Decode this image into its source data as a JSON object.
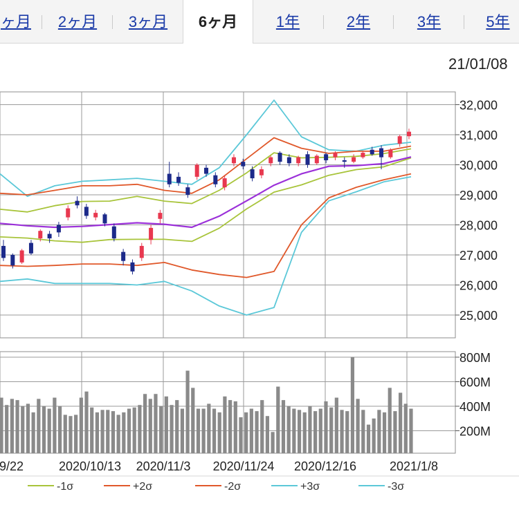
{
  "tabs": [
    {
      "label": "ヶ月",
      "active": false
    },
    {
      "label": "2ヶ月",
      "active": false
    },
    {
      "label": "3ヶ月",
      "active": false
    },
    {
      "label": "6ヶ月",
      "active": true
    },
    {
      "label": "1年",
      "active": false
    },
    {
      "label": "2年",
      "active": false
    },
    {
      "label": "3年",
      "active": false
    },
    {
      "label": "5年",
      "active": false
    }
  ],
  "date_label": "21/01/08",
  "colors": {
    "up": "#e8384f",
    "down": "#1c2a8a",
    "ma": "#9b30d9",
    "sigma1": "#a8c43a",
    "sigma2": "#e0582a",
    "sigma3": "#5bc8d8",
    "volume": "#8a8a8a",
    "grid": "#9a9a9a"
  },
  "chart_data": [
    {
      "type": "line",
      "title": "",
      "xlabel": "",
      "ylabel": "",
      "ylim": [
        24500,
        32500
      ],
      "x_ticks": [
        "9/22",
        "2020/10/13",
        "2020/11/3",
        "2020/11/24",
        "2020/12/16",
        "2021/1/8"
      ],
      "y_ticks": [
        "25,000",
        "26,000",
        "27,000",
        "28,000",
        "29,000",
        "30,000",
        "31,000",
        "32,000"
      ],
      "grid": true,
      "series": [
        {
          "name": "-1σ",
          "values": [
            27050,
            27100,
            27150,
            27150,
            27200,
            27250,
            27350,
            27500,
            27700,
            28100,
            28600,
            29150,
            29400,
            29520,
            29700,
            29870
          ]
        },
        {
          "name": "+2σ",
          "values": [
            29050,
            29000,
            29150,
            29300,
            29300,
            29350,
            29150,
            29050,
            29500,
            30200,
            30900,
            30550,
            30380,
            30450,
            30450,
            30620
          ]
        },
        {
          "name": "-2σ",
          "values": [
            26650,
            26620,
            26650,
            26700,
            26700,
            26650,
            26750,
            26500,
            26350,
            26250,
            26450,
            28000,
            28900,
            29250,
            29500,
            29700
          ]
        },
        {
          "name": "+3σ",
          "values": [
            29700,
            28950,
            29300,
            29450,
            29500,
            29550,
            29450,
            29350,
            29900,
            31000,
            32150,
            30930,
            30500,
            30450,
            30650,
            30750
          ]
        },
        {
          "name": "-3σ",
          "values": [
            26120,
            26200,
            26050,
            26050,
            26050,
            26000,
            26120,
            25800,
            25300,
            25000,
            25250,
            27750,
            28800,
            29100,
            29430,
            29600
          ]
        },
        {
          "name": "",
          "values": [
            28050,
            27970,
            27920,
            27950,
            28010,
            28070,
            28020,
            27920,
            28290,
            28800,
            29320,
            29700,
            29950,
            29970,
            30040,
            30260
          ]
        },
        {
          "name": "",
          "values": [
            28520,
            28430,
            28640,
            28780,
            28790,
            28950,
            28790,
            28710,
            29150,
            29730,
            30400,
            30230,
            30250,
            30280,
            30370,
            30530
          ]
        },
        {
          "name": "",
          "values": [
            27600,
            27560,
            27470,
            27420,
            27510,
            27520,
            27520,
            27450,
            27890,
            28530,
            29090,
            29330,
            29650,
            29840,
            29930,
            30230
          ]
        }
      ],
      "candles": [
        {
          "o": 26900,
          "c": 27300,
          "h": 27500,
          "l": 26800,
          "dir": "down"
        },
        {
          "o": 27000,
          "c": 26650,
          "h": 27050,
          "l": 26550,
          "dir": "down"
        },
        {
          "o": 26750,
          "c": 27150,
          "h": 27200,
          "l": 26700,
          "dir": "up"
        },
        {
          "o": 27400,
          "c": 27050,
          "h": 27500,
          "l": 27000,
          "dir": "down"
        },
        {
          "o": 27550,
          "c": 27800,
          "h": 27850,
          "l": 27450,
          "dir": "up"
        },
        {
          "o": 27700,
          "c": 27550,
          "h": 27800,
          "l": 27400,
          "dir": "down"
        },
        {
          "o": 28000,
          "c": 27750,
          "h": 28100,
          "l": 27600,
          "dir": "down"
        },
        {
          "o": 28250,
          "c": 28550,
          "h": 28650,
          "l": 28150,
          "dir": "up"
        },
        {
          "o": 28800,
          "c": 28650,
          "h": 28950,
          "l": 28550,
          "dir": "down"
        },
        {
          "o": 28600,
          "c": 28300,
          "h": 28700,
          "l": 28200,
          "dir": "down"
        },
        {
          "o": 28250,
          "c": 28400,
          "h": 28500,
          "l": 28150,
          "dir": "up"
        },
        {
          "o": 28350,
          "c": 28050,
          "h": 28400,
          "l": 27950,
          "dir": "down"
        },
        {
          "o": 27950,
          "c": 27550,
          "h": 28050,
          "l": 27450,
          "dir": "down"
        },
        {
          "o": 27100,
          "c": 26800,
          "h": 27200,
          "l": 26650,
          "dir": "down"
        },
        {
          "o": 26750,
          "c": 26450,
          "h": 26850,
          "l": 26350,
          "dir": "down"
        },
        {
          "o": 26900,
          "c": 27300,
          "h": 27400,
          "l": 26800,
          "dir": "up"
        },
        {
          "o": 27500,
          "c": 27900,
          "h": 28000,
          "l": 27350,
          "dir": "up"
        },
        {
          "o": 28200,
          "c": 28400,
          "h": 28500,
          "l": 28050,
          "dir": "up"
        },
        {
          "o": 29700,
          "c": 29350,
          "h": 30100,
          "l": 29250,
          "dir": "down"
        },
        {
          "o": 29600,
          "c": 29400,
          "h": 29750,
          "l": 29300,
          "dir": "down"
        },
        {
          "o": 29250,
          "c": 29000,
          "h": 29350,
          "l": 28900,
          "dir": "down"
        },
        {
          "o": 29600,
          "c": 30000,
          "h": 30050,
          "l": 29500,
          "dir": "up"
        },
        {
          "o": 29900,
          "c": 29700,
          "h": 30000,
          "l": 29600,
          "dir": "down"
        },
        {
          "o": 29650,
          "c": 29350,
          "h": 29750,
          "l": 29250,
          "dir": "down"
        },
        {
          "o": 29250,
          "c": 29550,
          "h": 29650,
          "l": 29150,
          "dir": "up"
        },
        {
          "o": 30050,
          "c": 30250,
          "h": 30350,
          "l": 29950,
          "dir": "up"
        },
        {
          "o": 30100,
          "c": 29950,
          "h": 30200,
          "l": 29850,
          "dir": "down"
        },
        {
          "o": 29850,
          "c": 29550,
          "h": 29950,
          "l": 29450,
          "dir": "down"
        },
        {
          "o": 29650,
          "c": 29850,
          "h": 29950,
          "l": 29550,
          "dir": "up"
        },
        {
          "o": 30050,
          "c": 30250,
          "h": 30300,
          "l": 29950,
          "dir": "up"
        },
        {
          "o": 30400,
          "c": 30100,
          "h": 30450,
          "l": 30000,
          "dir": "down"
        },
        {
          "o": 30250,
          "c": 30050,
          "h": 30350,
          "l": 29950,
          "dir": "down"
        },
        {
          "o": 30050,
          "c": 30250,
          "h": 30300,
          "l": 29950,
          "dir": "up"
        },
        {
          "o": 30350,
          "c": 30000,
          "h": 30450,
          "l": 29900,
          "dir": "down"
        },
        {
          "o": 30050,
          "c": 30300,
          "h": 30350,
          "l": 30000,
          "dir": "up"
        },
        {
          "o": 30350,
          "c": 30150,
          "h": 30400,
          "l": 30050,
          "dir": "down"
        },
        {
          "o": 30250,
          "c": 30400,
          "h": 30450,
          "l": 30150,
          "dir": "up"
        },
        {
          "o": 30150,
          "c": 30100,
          "h": 30250,
          "l": 29900,
          "dir": "down"
        },
        {
          "o": 30100,
          "c": 30250,
          "h": 30350,
          "l": 30050,
          "dir": "up"
        },
        {
          "o": 30250,
          "c": 30400,
          "h": 30450,
          "l": 30200,
          "dir": "up"
        },
        {
          "o": 30500,
          "c": 30350,
          "h": 30600,
          "l": 30300,
          "dir": "down"
        },
        {
          "o": 30550,
          "c": 30250,
          "h": 30650,
          "l": 29850,
          "dir": "down"
        },
        {
          "o": 30250,
          "c": 30500,
          "h": 30550,
          "l": 30200,
          "dir": "up"
        },
        {
          "o": 30700,
          "c": 30950,
          "h": 31000,
          "l": 30600,
          "dir": "up"
        },
        {
          "o": 30950,
          "c": 31100,
          "h": 31200,
          "l": 30850,
          "dir": "up"
        }
      ]
    },
    {
      "type": "bar",
      "title": "",
      "xlabel": "",
      "ylabel": "",
      "ylim": [
        0,
        900
      ],
      "y_unit": "M",
      "y_ticks": [
        "200M",
        "400M",
        "600M",
        "800M"
      ],
      "values": [
        470,
        410,
        460,
        450,
        400,
        420,
        350,
        460,
        400,
        380,
        470,
        400,
        330,
        320,
        330,
        470,
        520,
        390,
        350,
        370,
        370,
        360,
        330,
        350,
        380,
        390,
        410,
        500,
        460,
        500,
        400,
        480,
        410,
        450,
        380,
        690,
        550,
        380,
        380,
        420,
        380,
        350,
        480,
        450,
        440,
        310,
        350,
        380,
        360,
        450,
        320,
        190,
        560,
        450,
        400,
        380,
        370,
        350,
        400,
        360,
        380,
        440,
        390,
        470,
        370,
        360,
        800,
        460,
        370,
        250,
        300,
        370,
        350,
        550,
        360,
        510,
        420,
        380
      ]
    }
  ],
  "legend": [
    {
      "label": "-1σ",
      "color_key": "sigma1"
    },
    {
      "label": "+2σ",
      "color_key": "sigma2"
    },
    {
      "label": "-2σ",
      "color_key": "sigma2"
    },
    {
      "label": "+3σ",
      "color_key": "sigma3"
    },
    {
      "label": "-3σ",
      "color_key": "sigma3"
    }
  ]
}
